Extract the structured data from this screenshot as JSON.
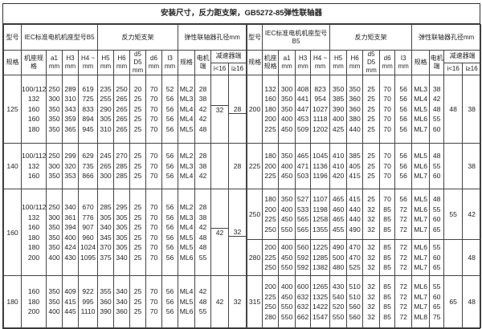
{
  "title": "安装尺寸，反力距支架，GB5272-85弹性联轴器",
  "headers": {
    "model": "型号",
    "spec": "规格",
    "iec": "IEC标准电机机座型号B5",
    "frame": "机座规格",
    "a1": "a1 mm",
    "H3": "H3 mm",
    "H4": "H4 ~ mm",
    "bracket": "反力矩支架",
    "H5": "H5 mm",
    "H6": "H6 mm",
    "d5": "d5 D5 mm",
    "d6": "d6 mm",
    "I3": "I3 mm",
    "coupling": "弹性联轴器孔径mm",
    "cspec": "规格",
    "motor_end": "电机端",
    "reducer_end": "减速器端",
    "i_lt": "i<16",
    "i_ge": "i≥16"
  },
  "left": [
    {
      "model": "125",
      "rows": [
        [
          "100/112",
          "250",
          "289",
          "619",
          "235",
          "250",
          "20",
          "70",
          "52",
          "ML2",
          "28"
        ],
        [
          "132",
          "300",
          "310",
          "725",
          "255",
          "265",
          "25",
          "70",
          "56",
          "ML3",
          "38"
        ],
        [
          "160",
          "350",
          "343",
          "833",
          "290",
          "265",
          "25",
          "70",
          "56",
          "ML4",
          "42"
        ],
        [
          "160",
          "350",
          "359",
          "894",
          "305",
          "265",
          "25",
          "70",
          "56",
          "ML4",
          "42"
        ],
        [
          "180",
          "350",
          "365",
          "945",
          "310",
          "265",
          "25",
          "70",
          "56",
          "ML5",
          "48"
        ]
      ],
      "i_lt": [
        "",
        "32"
      ],
      "i_ge": [
        "28",
        ""
      ]
    },
    {
      "model": "140",
      "rows": [
        [
          "100/112",
          "250",
          "299",
          "629",
          "245",
          "270",
          "25",
          "70",
          "56",
          "ML2",
          "28"
        ],
        [
          "132",
          "300",
          "320",
          "735",
          "265",
          "285",
          "25",
          "70",
          "56",
          "ML3",
          "38"
        ],
        [
          "160",
          "350",
          "353",
          "866",
          "300",
          "285",
          "25",
          "70",
          "56",
          "ML4",
          "42"
        ]
      ],
      "i_lt": [
        ""
      ],
      "i_ge": [
        "28"
      ]
    },
    {
      "model": "160",
      "rows": [
        [
          "100/112",
          "250",
          "340",
          "670",
          "285",
          "295",
          "25",
          "70",
          "56",
          "ML2",
          "28"
        ],
        [
          "132",
          "300",
          "361",
          "776",
          "305",
          "305",
          "25",
          "70",
          "56",
          "ML3",
          "38"
        ],
        [
          "160",
          "350",
          "394",
          "907",
          "340",
          "305",
          "25",
          "70",
          "56",
          "ML4",
          "42"
        ],
        [
          "180",
          "350",
          "400",
          "960",
          "345",
          "305",
          "25",
          "70",
          "56",
          "ML5",
          "48"
        ],
        [
          "180",
          "350",
          "424",
          "1024",
          "370",
          "305",
          "25",
          "70",
          "56",
          "ML5",
          "48"
        ],
        [
          "200",
          "400",
          "430",
          "1095",
          "375",
          "340",
          "25",
          "70",
          "56",
          "ML6",
          "55"
        ]
      ],
      "i_lt": [
        "",
        "42"
      ],
      "i_ge": [
        "32",
        ""
      ]
    },
    {
      "model": "180",
      "rows": [
        [
          "160",
          "350",
          "409",
          "922",
          "355",
          "340",
          "25",
          "70",
          "56",
          "ML4",
          "42"
        ],
        [
          "180",
          "350",
          "415",
          "995",
          "360",
          "340",
          "25",
          "70",
          "56",
          "ML5",
          "48"
        ],
        [
          "200",
          "400",
          "445",
          "1110",
          "390",
          "360",
          "25",
          "70",
          "56",
          "ML6",
          "55"
        ]
      ],
      "i_lt": [
        "42"
      ],
      "i_ge": [
        "32"
      ]
    }
  ],
  "right": [
    {
      "model": "200",
      "rows": [
        [
          "132",
          "300",
          "408",
          "823",
          "350",
          "350",
          "25",
          "70",
          "56",
          "ML3",
          "38"
        ],
        [
          "160",
          "350",
          "441",
          "954",
          "385",
          "360",
          "25",
          "70",
          "56",
          "ML4",
          "42"
        ],
        [
          "180",
          "350",
          "447",
          "1027",
          "390",
          "360",
          "25",
          "70",
          "56",
          "ML5",
          "48"
        ],
        [
          "200",
          "400",
          "453",
          "1118",
          "400",
          "380",
          "25",
          "70",
          "56",
          "ML6",
          "55"
        ],
        [
          "225",
          "450",
          "509",
          "1202",
          "425",
          "440",
          "25",
          "70",
          "56",
          "ML7",
          "60"
        ]
      ],
      "i_lt": [
        "48"
      ],
      "i_ge": [
        "38"
      ]
    },
    {
      "model": "225",
      "rows": [
        [
          "180",
          "350",
          "465",
          "1045",
          "410",
          "385",
          "25",
          "70",
          "56",
          "ML5",
          "48"
        ],
        [
          "200",
          "400",
          "471",
          "1136",
          "410",
          "405",
          "25",
          "70",
          "56",
          "ML6",
          "55"
        ],
        [
          "225",
          "450",
          "503",
          "1196",
          "420",
          "415",
          "25",
          "70",
          "56",
          "ML7",
          "60"
        ]
      ],
      "i_lt": [
        ""
      ],
      "i_ge": [
        "38"
      ]
    },
    {
      "model": "250",
      "rows": [
        [
          "180",
          "350",
          "527",
          "1107",
          "465",
          "415",
          "25",
          "70",
          "56",
          "ML5",
          "48"
        ],
        [
          "200",
          "400",
          "533",
          "1198",
          "460",
          "440",
          "32",
          "85",
          "72",
          "ML6",
          "55"
        ],
        [
          "225",
          "450",
          "565",
          "1258",
          "465",
          "440",
          "32",
          "85",
          "72",
          "ML7",
          "60"
        ],
        [
          "250",
          "550",
          "565",
          "1355",
          "455",
          "490",
          "32",
          "85",
          "72",
          "ML7",
          "65"
        ]
      ],
      "i_lt": [
        "55"
      ],
      "i_ge": [
        "42"
      ]
    },
    {
      "model": "280",
      "rows": [
        [
          "200",
          "400",
          "560",
          "1225",
          "490",
          "470",
          "32",
          "85",
          "72",
          "ML6",
          "55"
        ],
        [
          "225",
          "450",
          "592",
          "1285",
          "500",
          "470",
          "32",
          "85",
          "72",
          "ML7",
          "60"
        ],
        [
          "250",
          "550",
          "592",
          "1382",
          "480",
          "525",
          "32",
          "85",
          "72",
          "ML7",
          "65"
        ]
      ],
      "i_lt": [
        ""
      ],
      "i_ge": [
        "48"
      ]
    },
    {
      "model": "315",
      "rows": [
        [
          "200",
          "400",
          "600",
          "1265",
          "430",
          "510",
          "32",
          "85",
          "72",
          "ML6",
          "55"
        ],
        [
          "225",
          "450",
          "632",
          "1325",
          "540",
          "510",
          "32",
          "85",
          "72",
          "ML7",
          "60"
        ],
        [
          "250",
          "550",
          "632",
          "1422",
          "520",
          "560",
          "32",
          "85",
          "72",
          "ML7",
          "65"
        ],
        [
          "280",
          "550",
          "662",
          "1547",
          "550",
          "560",
          "32",
          "85",
          "72",
          "ML8",
          "75"
        ]
      ],
      "i_lt": [
        "65"
      ],
      "i_ge": [
        "48"
      ]
    }
  ]
}
